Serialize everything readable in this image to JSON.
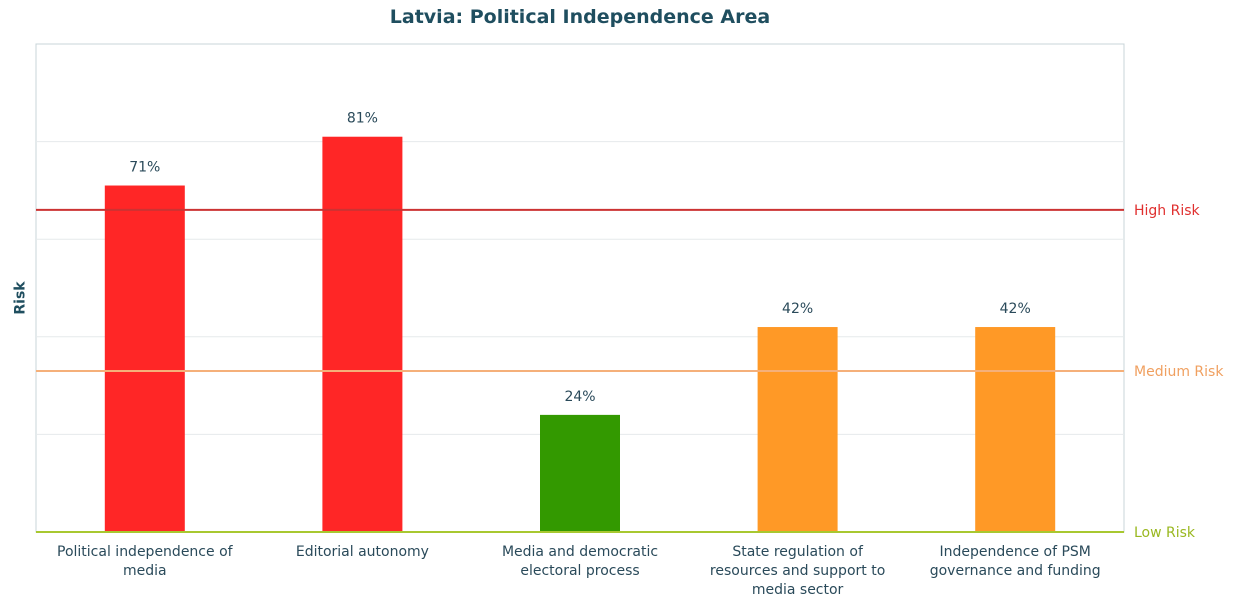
{
  "chart_data": {
    "type": "bar",
    "title": "Latvia: Political Independence Area",
    "xlabel": "",
    "ylabel": "Risk",
    "ylim": [
      0,
      100
    ],
    "grid": true,
    "categories": [
      [
        "Political independence of",
        "media"
      ],
      [
        "Editorial autonomy"
      ],
      [
        "Media and democratic",
        "electoral process"
      ],
      [
        "State regulation of",
        "resources and support to",
        "media sector"
      ],
      [
        "Independence of PSM",
        "governance and funding"
      ]
    ],
    "values": [
      71,
      81,
      24,
      42,
      42
    ],
    "value_labels": [
      "71%",
      "81%",
      "24%",
      "42%",
      "42%"
    ],
    "bar_colors": [
      "#ff2626",
      "#ff2626",
      "#339900",
      "#ff9926",
      "#ff9926"
    ],
    "thresholds": [
      {
        "label": "High Risk",
        "value": 66,
        "color": "#cc3333",
        "label_color": "#e0302f"
      },
      {
        "label": "Medium Risk",
        "value": 33,
        "color": "#f5b07a",
        "label_color": "#f0a060"
      },
      {
        "label": "Low Risk",
        "value": 0,
        "color": "#a8c830",
        "label_color": "#9ab820"
      }
    ]
  }
}
